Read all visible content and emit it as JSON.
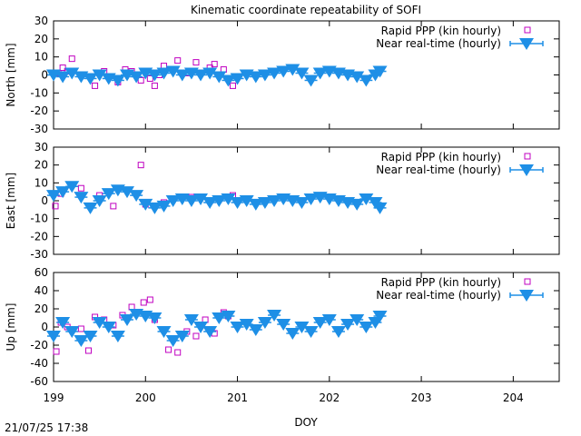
{
  "title": "Kinematic coordinate repeatability of SOFI",
  "xlabel": "DOY",
  "timestamp": "21/07/25 17:38",
  "x_ticks": [
    "199",
    "200",
    "201",
    "202",
    "203",
    "204"
  ],
  "colors": {
    "ppp": "#c000c0",
    "nrt": "#1e8fe6"
  },
  "legend": {
    "ppp": "Rapid PPP (kin hourly)",
    "nrt": "Near real-time (hourly)"
  },
  "chart_data": [
    {
      "type": "scatter",
      "ylabel": "North [mm]",
      "xlim": [
        199,
        204.5
      ],
      "ylim": [
        -30,
        30
      ],
      "y_ticks": [
        "30",
        "20",
        "10",
        "0",
        "-10",
        "-20",
        "-30"
      ],
      "series": [
        {
          "name": "Rapid PPP (kin hourly)",
          "x": [
            199.05,
            199.1,
            199.15,
            199.2,
            199.3,
            199.45,
            199.55,
            199.7,
            199.78,
            199.85,
            199.95,
            200.05,
            200.1,
            200.15,
            200.2,
            200.35,
            200.45,
            200.55,
            200.7,
            200.75,
            200.85,
            200.95
          ],
          "y": [
            1,
            4,
            2,
            9,
            0,
            -6,
            2,
            -4,
            3,
            2,
            -3,
            -2,
            -6,
            0,
            5,
            8,
            1,
            7,
            4,
            6,
            3,
            -6
          ]
        },
        {
          "name": "Near real-time (hourly)",
          "x": [
            199.0,
            199.1,
            199.2,
            199.3,
            199.4,
            199.5,
            199.6,
            199.7,
            199.8,
            199.9,
            200.0,
            200.1,
            200.2,
            200.3,
            200.4,
            200.5,
            200.6,
            200.7,
            200.8,
            200.9,
            201.0,
            201.1,
            201.2,
            201.3,
            201.4,
            201.5,
            201.6,
            201.7,
            201.8,
            201.9,
            202.0,
            202.1,
            202.2,
            202.3,
            202.4,
            202.5,
            202.55
          ],
          "y": [
            0,
            -1,
            1,
            -1,
            -2,
            0,
            -2,
            -3,
            0,
            -1,
            1,
            0,
            1,
            2,
            0,
            1,
            0,
            1,
            -1,
            -3,
            -2,
            0,
            -1,
            0,
            1,
            2,
            3,
            1,
            -3,
            1,
            2,
            1,
            0,
            -1,
            -3,
            0,
            2
          ]
        }
      ]
    },
    {
      "type": "scatter",
      "ylabel": "East [mm]",
      "xlim": [
        199,
        204.5
      ],
      "ylim": [
        -30,
        30
      ],
      "y_ticks": [
        "30",
        "20",
        "10",
        "0",
        "-10",
        "-20",
        "-30"
      ],
      "series": [
        {
          "name": "Rapid PPP (kin hourly)",
          "x": [
            199.02,
            199.08,
            199.3,
            199.5,
            199.65,
            199.95,
            200.0,
            200.2,
            200.5,
            200.7,
            200.8,
            200.95
          ],
          "y": [
            -3,
            4,
            7,
            3,
            -3,
            20,
            -2,
            -1,
            2,
            0,
            1,
            3
          ]
        },
        {
          "name": "Near real-time (hourly)",
          "x": [
            199.0,
            199.1,
            199.2,
            199.3,
            199.4,
            199.5,
            199.6,
            199.7,
            199.8,
            199.9,
            200.0,
            200.1,
            200.2,
            200.3,
            200.4,
            200.5,
            200.6,
            200.7,
            200.8,
            200.9,
            201.0,
            201.1,
            201.2,
            201.3,
            201.4,
            201.5,
            201.6,
            201.7,
            201.8,
            201.9,
            202.0,
            202.1,
            202.2,
            202.3,
            202.4,
            202.5,
            202.55
          ],
          "y": [
            3,
            5,
            8,
            2,
            -4,
            0,
            4,
            6,
            5,
            3,
            -2,
            -4,
            -3,
            0,
            1,
            0,
            1,
            -1,
            0,
            1,
            -1,
            0,
            -2,
            -1,
            0,
            1,
            0,
            -1,
            1,
            2,
            1,
            0,
            -1,
            -2,
            1,
            -1,
            -4
          ]
        }
      ]
    },
    {
      "type": "scatter",
      "ylabel": "Up [mm]",
      "xlim": [
        199,
        204.5
      ],
      "ylim": [
        -60,
        60
      ],
      "y_ticks": [
        "60",
        "40",
        "20",
        "0",
        "-20",
        "-40",
        "-60"
      ],
      "series": [
        {
          "name": "Rapid PPP (kin hourly)",
          "x": [
            199.03,
            199.08,
            199.15,
            199.3,
            199.38,
            199.45,
            199.55,
            199.65,
            199.75,
            199.85,
            199.98,
            200.05,
            200.1,
            200.25,
            200.35,
            200.45,
            200.55,
            200.65,
            200.75,
            200.85,
            200.9
          ],
          "y": [
            -27,
            5,
            0,
            -2,
            -26,
            11,
            8,
            2,
            13,
            22,
            27,
            30,
            8,
            -25,
            -28,
            -5,
            -10,
            8,
            -7,
            16,
            12
          ]
        },
        {
          "name": "Near real-time (hourly)",
          "x": [
            199.0,
            199.1,
            199.2,
            199.3,
            199.4,
            199.5,
            199.6,
            199.7,
            199.8,
            199.9,
            200.0,
            200.1,
            200.2,
            200.3,
            200.4,
            200.5,
            200.6,
            200.7,
            200.8,
            200.9,
            201.0,
            201.1,
            201.2,
            201.3,
            201.4,
            201.5,
            201.6,
            201.7,
            201.8,
            201.9,
            202.0,
            202.1,
            202.2,
            202.3,
            202.4,
            202.5,
            202.55
          ],
          "y": [
            -10,
            5,
            -5,
            -15,
            -10,
            5,
            0,
            -10,
            8,
            14,
            12,
            10,
            -5,
            -15,
            -10,
            8,
            0,
            -5,
            10,
            12,
            0,
            3,
            -3,
            5,
            13,
            3,
            -7,
            0,
            -5,
            5,
            8,
            -5,
            3,
            8,
            0,
            5,
            12
          ]
        }
      ]
    }
  ]
}
